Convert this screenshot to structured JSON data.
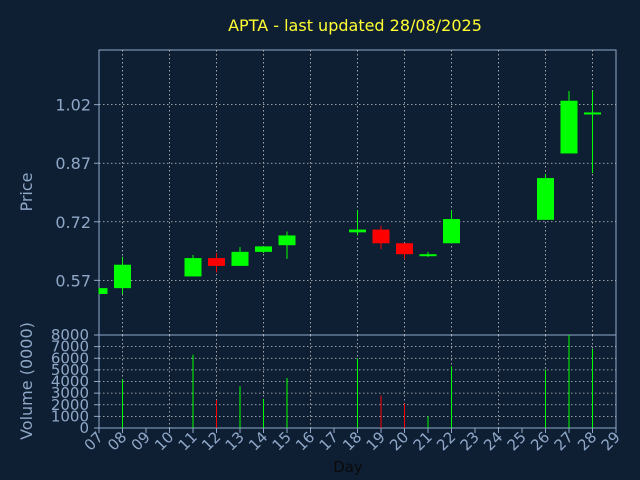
{
  "chart_data": {
    "type": "candlestick",
    "title": "APTA - last updated 28/08/2025",
    "xlabel": "Day",
    "ylabel_price": "Price",
    "ylabel_volume": "Volume (0000)",
    "price_ticks": [
      "0.57",
      "0.87",
      "0.72",
      "1.02"
    ],
    "price_tick_values": [
      0.57,
      0.87,
      0.72,
      1.02
    ],
    "price_ylim": [
      0.43,
      1.16
    ],
    "volume_ticks": [
      "0",
      "1000",
      "2000",
      "3000",
      "4000",
      "5000",
      "6000",
      "7000",
      "8000"
    ],
    "volume_tick_values": [
      0,
      1000,
      2000,
      3000,
      4000,
      5000,
      6000,
      7000,
      8000
    ],
    "volume_ylim": [
      0,
      8000
    ],
    "x_ticks": [
      "07",
      "08",
      "09",
      "10",
      "11",
      "12",
      "13",
      "14",
      "15",
      "16",
      "17",
      "18",
      "19",
      "20",
      "21",
      "22",
      "23",
      "24",
      "25",
      "26",
      "27",
      "28",
      "29"
    ],
    "x_range": [
      7,
      29
    ],
    "grid": true,
    "colors": {
      "up": "#00ff00",
      "down": "#ff0000",
      "background": "#0f1f33",
      "title": "#ffff33",
      "axis_text": "#8fa8c8",
      "grid": "#c8c8c8"
    },
    "candles": [
      {
        "day": 7,
        "open": 0.535,
        "close": 0.55,
        "high": 0.55,
        "low": 0.535,
        "volume": 0
      },
      {
        "day": 8,
        "open": 0.55,
        "close": 0.61,
        "high": 0.63,
        "low": 0.535,
        "volume": 4200
      },
      {
        "day": 11,
        "open": 0.58,
        "close": 0.627,
        "high": 0.635,
        "low": 0.58,
        "volume": 6300
      },
      {
        "day": 12,
        "open": 0.627,
        "close": 0.607,
        "high": 0.64,
        "low": 0.59,
        "volume": 2400
      },
      {
        "day": 13,
        "open": 0.607,
        "close": 0.643,
        "high": 0.655,
        "low": 0.607,
        "volume": 3600
      },
      {
        "day": 14,
        "open": 0.643,
        "close": 0.657,
        "high": 0.657,
        "low": 0.64,
        "volume": 2500
      },
      {
        "day": 15,
        "open": 0.66,
        "close": 0.685,
        "high": 0.695,
        "low": 0.625,
        "volume": 4300
      },
      {
        "day": 18,
        "open": 0.693,
        "close": 0.7,
        "high": 0.75,
        "low": 0.685,
        "volume": 6000
      },
      {
        "day": 19,
        "open": 0.7,
        "close": 0.665,
        "high": 0.71,
        "low": 0.65,
        "volume": 2800
      },
      {
        "day": 20,
        "open": 0.665,
        "close": 0.637,
        "high": 0.665,
        "low": 0.625,
        "volume": 2100
      },
      {
        "day": 21,
        "open": 0.632,
        "close": 0.637,
        "high": 0.643,
        "low": 0.63,
        "volume": 1000
      },
      {
        "day": 22,
        "open": 0.665,
        "close": 0.727,
        "high": 0.75,
        "low": 0.665,
        "volume": 5300
      },
      {
        "day": 26,
        "open": 0.725,
        "close": 0.832,
        "high": 0.842,
        "low": 0.725,
        "volume": 5000
      },
      {
        "day": 27,
        "open": 0.895,
        "close": 1.03,
        "high": 1.055,
        "low": 0.895,
        "volume": 8000
      },
      {
        "day": 28,
        "open": 1.0,
        "close": 1.0,
        "high": 1.055,
        "low": 0.845,
        "volume": 6800
      }
    ]
  }
}
